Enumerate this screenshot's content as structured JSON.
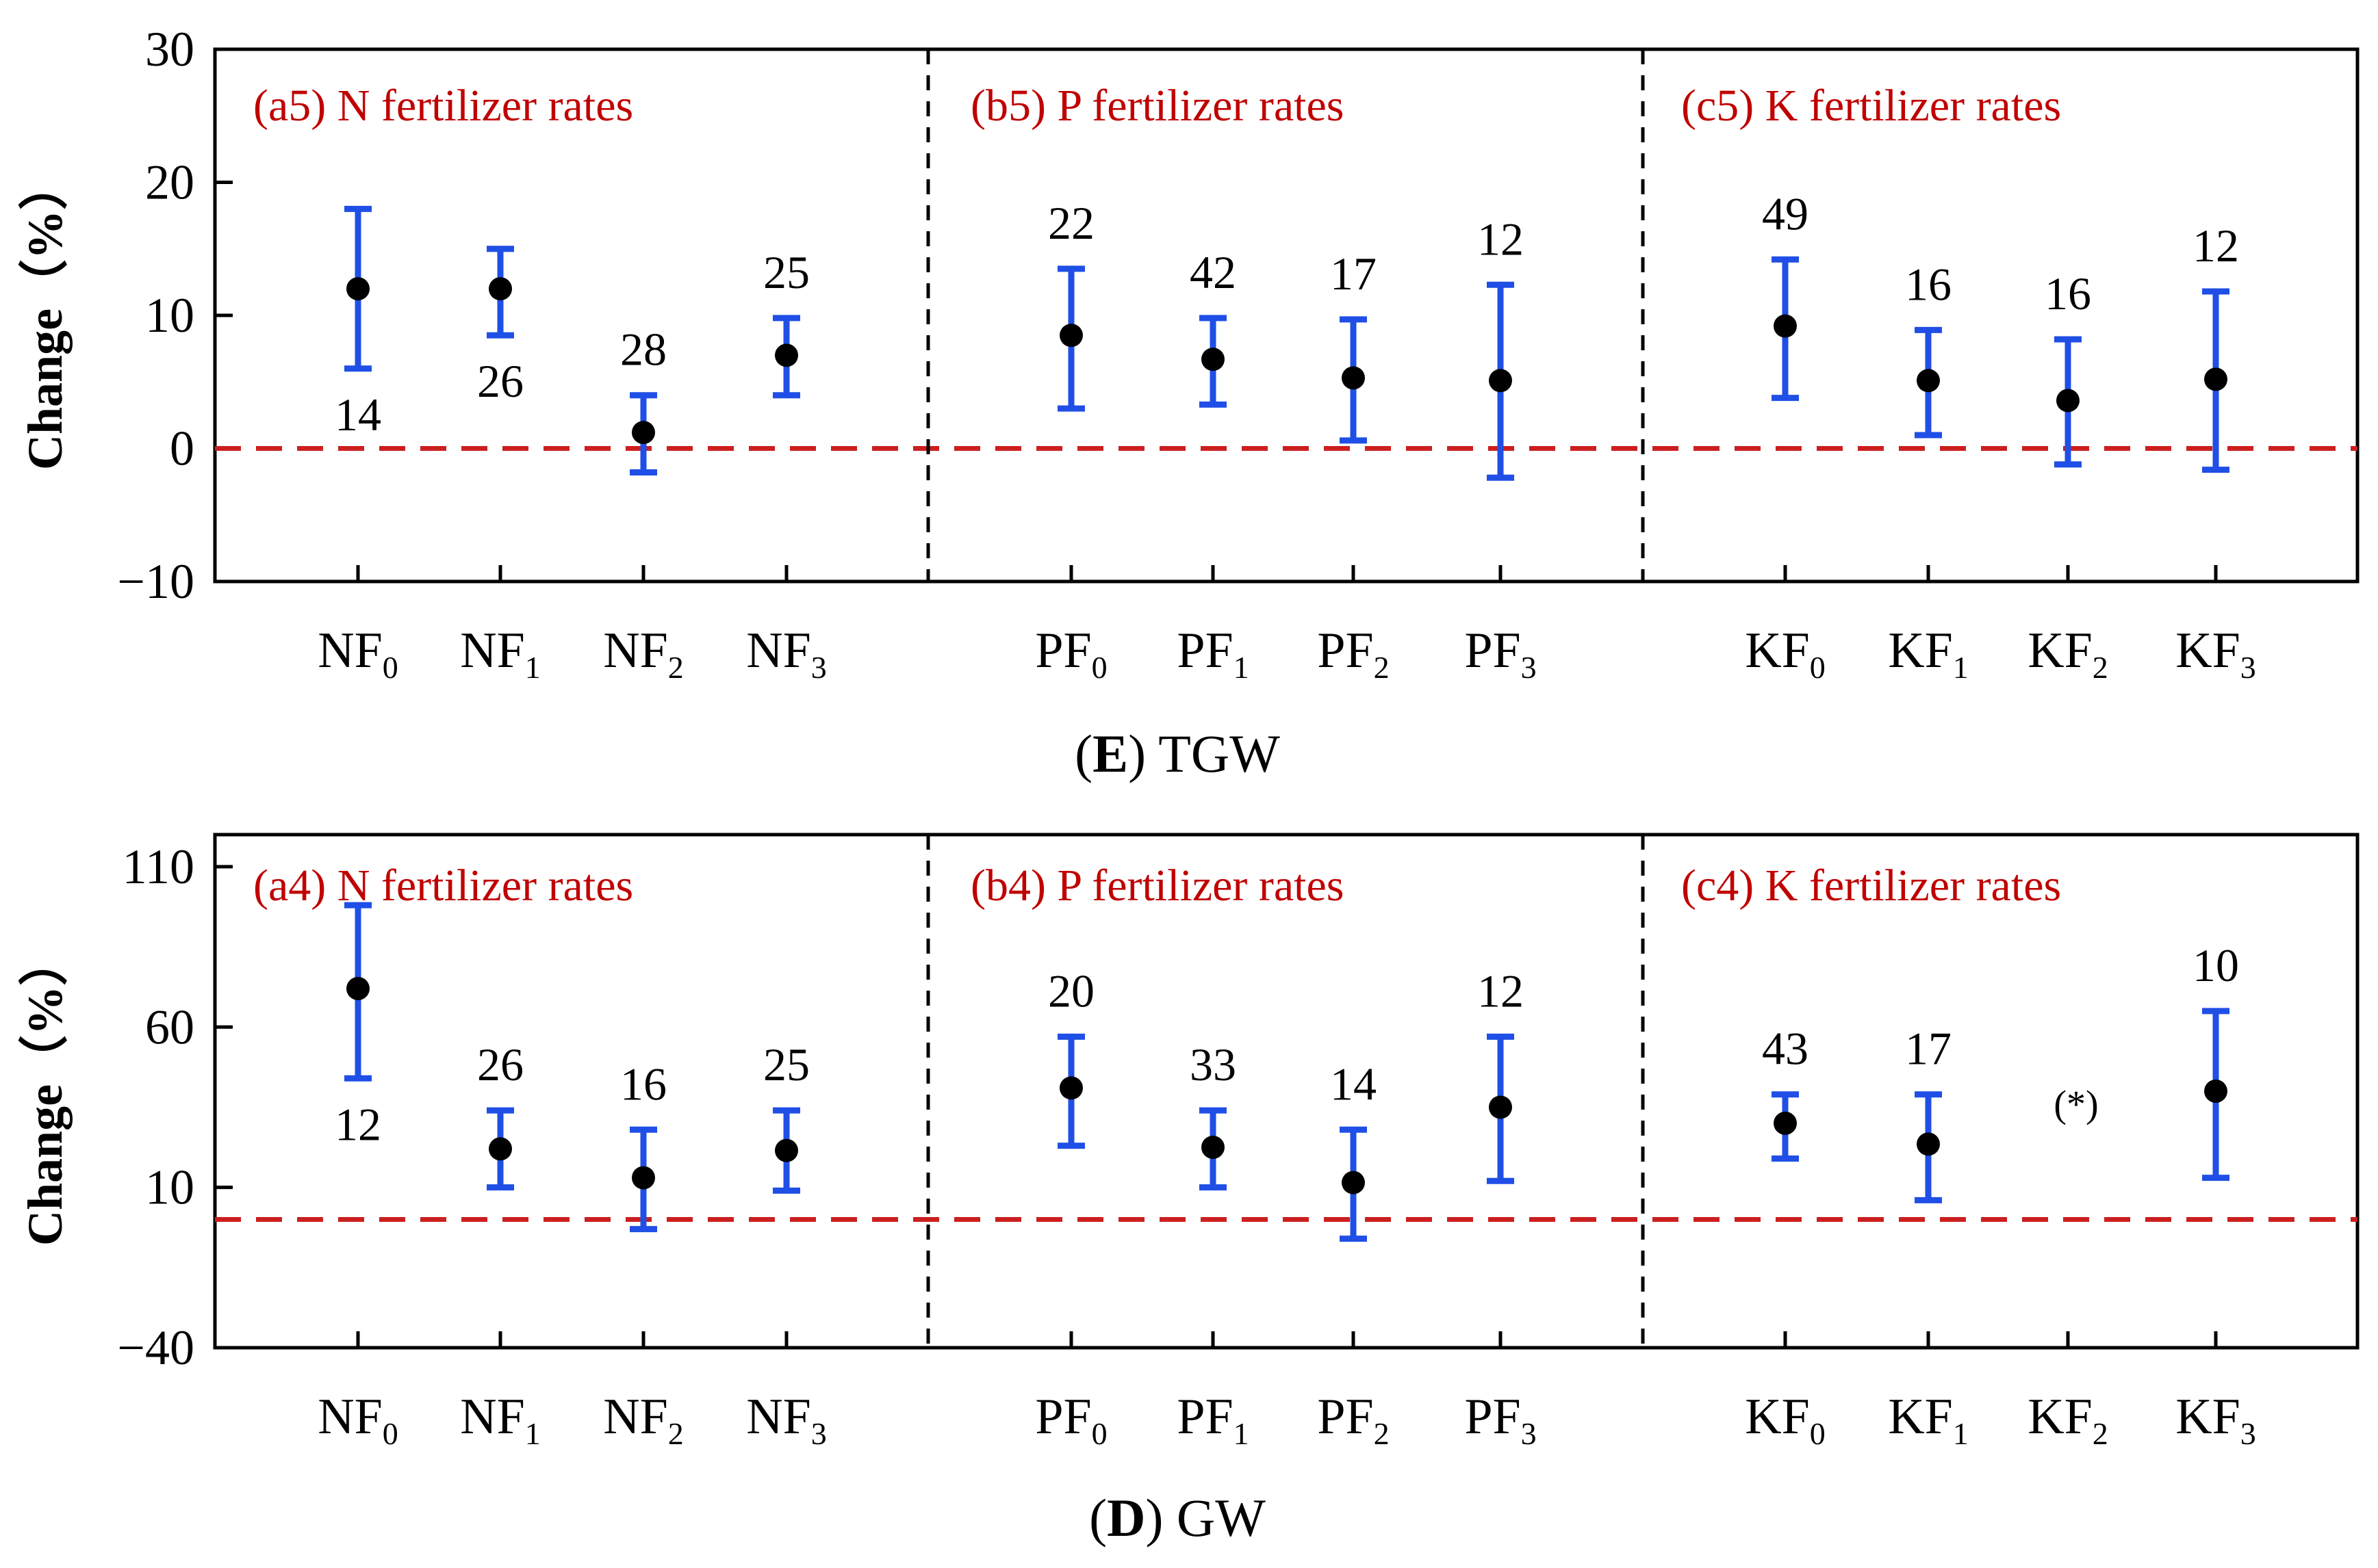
{
  "colors": {
    "errorbar": "#1f4fe6",
    "point": "#000000",
    "reference_line": "#cc1f1f",
    "panel_label": "#c00000",
    "divider": "#000000"
  },
  "chart_data": [
    {
      "type": "scatter",
      "id": "tgw",
      "caption_letter": "E",
      "caption_text": "TGW",
      "ylabel": "Change（%）",
      "ylim": [
        -10,
        30
      ],
      "yticks": [
        -10,
        0,
        10,
        20,
        30
      ],
      "reference_line": 0,
      "groups": [
        {
          "label": "(a5) N fertilizer rates",
          "categories": [
            {
              "base": "NF",
              "sub": "0",
              "mean": 12,
              "low": 6,
              "high": 18,
              "n": "14",
              "n_pos": "below"
            },
            {
              "base": "NF",
              "sub": "1",
              "mean": 12,
              "low": 8.5,
              "high": 15,
              "n": "26",
              "n_pos": "below"
            },
            {
              "base": "NF",
              "sub": "2",
              "mean": 1.2,
              "low": -1.8,
              "high": 4,
              "n": "28",
              "n_pos": "above"
            },
            {
              "base": "NF",
              "sub": "3",
              "mean": 7,
              "low": 4,
              "high": 9.8,
              "n": "25",
              "n_pos": "above"
            }
          ]
        },
        {
          "label": "(b5) P fertilizer rates",
          "categories": [
            {
              "base": "PF",
              "sub": "0",
              "mean": 8.5,
              "low": 3,
              "high": 13.5,
              "n": "22",
              "n_pos": "above"
            },
            {
              "base": "PF",
              "sub": "1",
              "mean": 6.7,
              "low": 3.3,
              "high": 9.8,
              "n": "42",
              "n_pos": "above"
            },
            {
              "base": "PF",
              "sub": "2",
              "mean": 5.3,
              "low": 0.6,
              "high": 9.7,
              "n": "17",
              "n_pos": "above"
            },
            {
              "base": "PF",
              "sub": "3",
              "mean": 5.1,
              "low": -2.2,
              "high": 12.3,
              "n": "12",
              "n_pos": "above"
            }
          ]
        },
        {
          "label": "(c5) K fertilizer rates",
          "categories": [
            {
              "base": "KF",
              "sub": "0",
              "mean": 9.2,
              "low": 3.8,
              "high": 14.2,
              "n": "49",
              "n_pos": "above"
            },
            {
              "base": "KF",
              "sub": "1",
              "mean": 5.1,
              "low": 1,
              "high": 8.9,
              "n": "16",
              "n_pos": "above"
            },
            {
              "base": "KF",
              "sub": "2",
              "mean": 3.6,
              "low": -1.2,
              "high": 8.2,
              "n": "16",
              "n_pos": "above"
            },
            {
              "base": "KF",
              "sub": "3",
              "mean": 5.2,
              "low": -1.6,
              "high": 11.8,
              "n": "12",
              "n_pos": "above"
            }
          ]
        }
      ]
    },
    {
      "type": "scatter",
      "id": "gw",
      "caption_letter": "D",
      "caption_text": "GW",
      "ylabel": "Change（%）",
      "ylim": [
        -40,
        120
      ],
      "yticks": [
        -40,
        10,
        60,
        110
      ],
      "reference_line": 0,
      "groups": [
        {
          "label": "(a4) N fertilizer rates",
          "categories": [
            {
              "base": "NF",
              "sub": "0",
              "mean": 72,
              "low": 44,
              "high": 98,
              "n": "12",
              "n_pos": "below"
            },
            {
              "base": "NF",
              "sub": "1",
              "mean": 22,
              "low": 10,
              "high": 34,
              "n": "26",
              "n_pos": "above"
            },
            {
              "base": "NF",
              "sub": "2",
              "mean": 13,
              "low": -3,
              "high": 28,
              "n": "16",
              "n_pos": "above"
            },
            {
              "base": "NF",
              "sub": "3",
              "mean": 21.5,
              "low": 9,
              "high": 34,
              "n": "25",
              "n_pos": "above"
            }
          ]
        },
        {
          "label": "(b4) P fertilizer rates",
          "categories": [
            {
              "base": "PF",
              "sub": "0",
              "mean": 41,
              "low": 23,
              "high": 57,
              "n": "20",
              "n_pos": "above"
            },
            {
              "base": "PF",
              "sub": "1",
              "mean": 22.5,
              "low": 10,
              "high": 34,
              "n": "33",
              "n_pos": "above"
            },
            {
              "base": "PF",
              "sub": "2",
              "mean": 11.5,
              "low": -6,
              "high": 28,
              "n": "14",
              "n_pos": "above"
            },
            {
              "base": "PF",
              "sub": "3",
              "mean": 35,
              "low": 12,
              "high": 57,
              "n": "12",
              "n_pos": "above"
            }
          ]
        },
        {
          "label": "(c4) K fertilizer rates",
          "categories": [
            {
              "base": "KF",
              "sub": "0",
              "mean": 30,
              "low": 19,
              "high": 39,
              "n": "43",
              "n_pos": "above"
            },
            {
              "base": "KF",
              "sub": "1",
              "mean": 23.5,
              "low": 6,
              "high": 39,
              "n": "17",
              "n_pos": "above"
            },
            {
              "base": "KF",
              "sub": "2",
              "mean": null,
              "low": null,
              "high": null,
              "n": "",
              "n_pos": "above"
            },
            {
              "base": "KF",
              "sub": "3",
              "mean": 40,
              "low": 13,
              "high": 65,
              "n": "10",
              "n_pos": "above"
            }
          ]
        }
      ],
      "note": "(*)"
    }
  ]
}
